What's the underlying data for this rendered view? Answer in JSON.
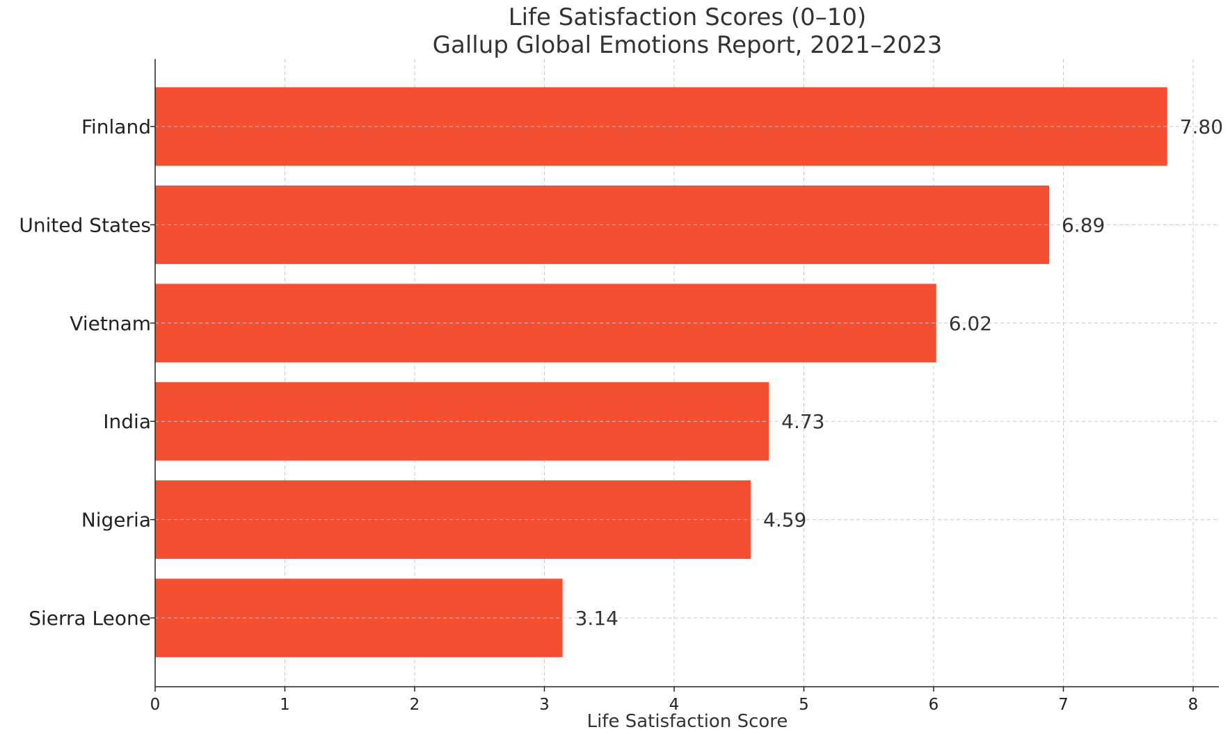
{
  "chart_data": {
    "type": "bar",
    "orientation": "horizontal",
    "title": [
      "Life Satisfaction Scores (0–10)",
      "Gallup Global Emotions Report, 2021–2023"
    ],
    "xlabel": "Life Satisfaction Score",
    "ylabel": "",
    "categories": [
      "Finland",
      "United States",
      "Vietnam",
      "India",
      "Nigeria",
      "Sierra Leone"
    ],
    "values": [
      7.8,
      6.89,
      6.02,
      4.73,
      4.59,
      3.14
    ],
    "value_labels": [
      "7.80",
      "6.89",
      "6.02",
      "4.73",
      "4.59",
      "3.14"
    ],
    "xticks": [
      "0",
      "1",
      "2",
      "3",
      "4",
      "5",
      "6",
      "7",
      "8"
    ],
    "xlim": [
      0,
      8.2
    ],
    "grid": true,
    "bar_color": "#f44f30"
  }
}
